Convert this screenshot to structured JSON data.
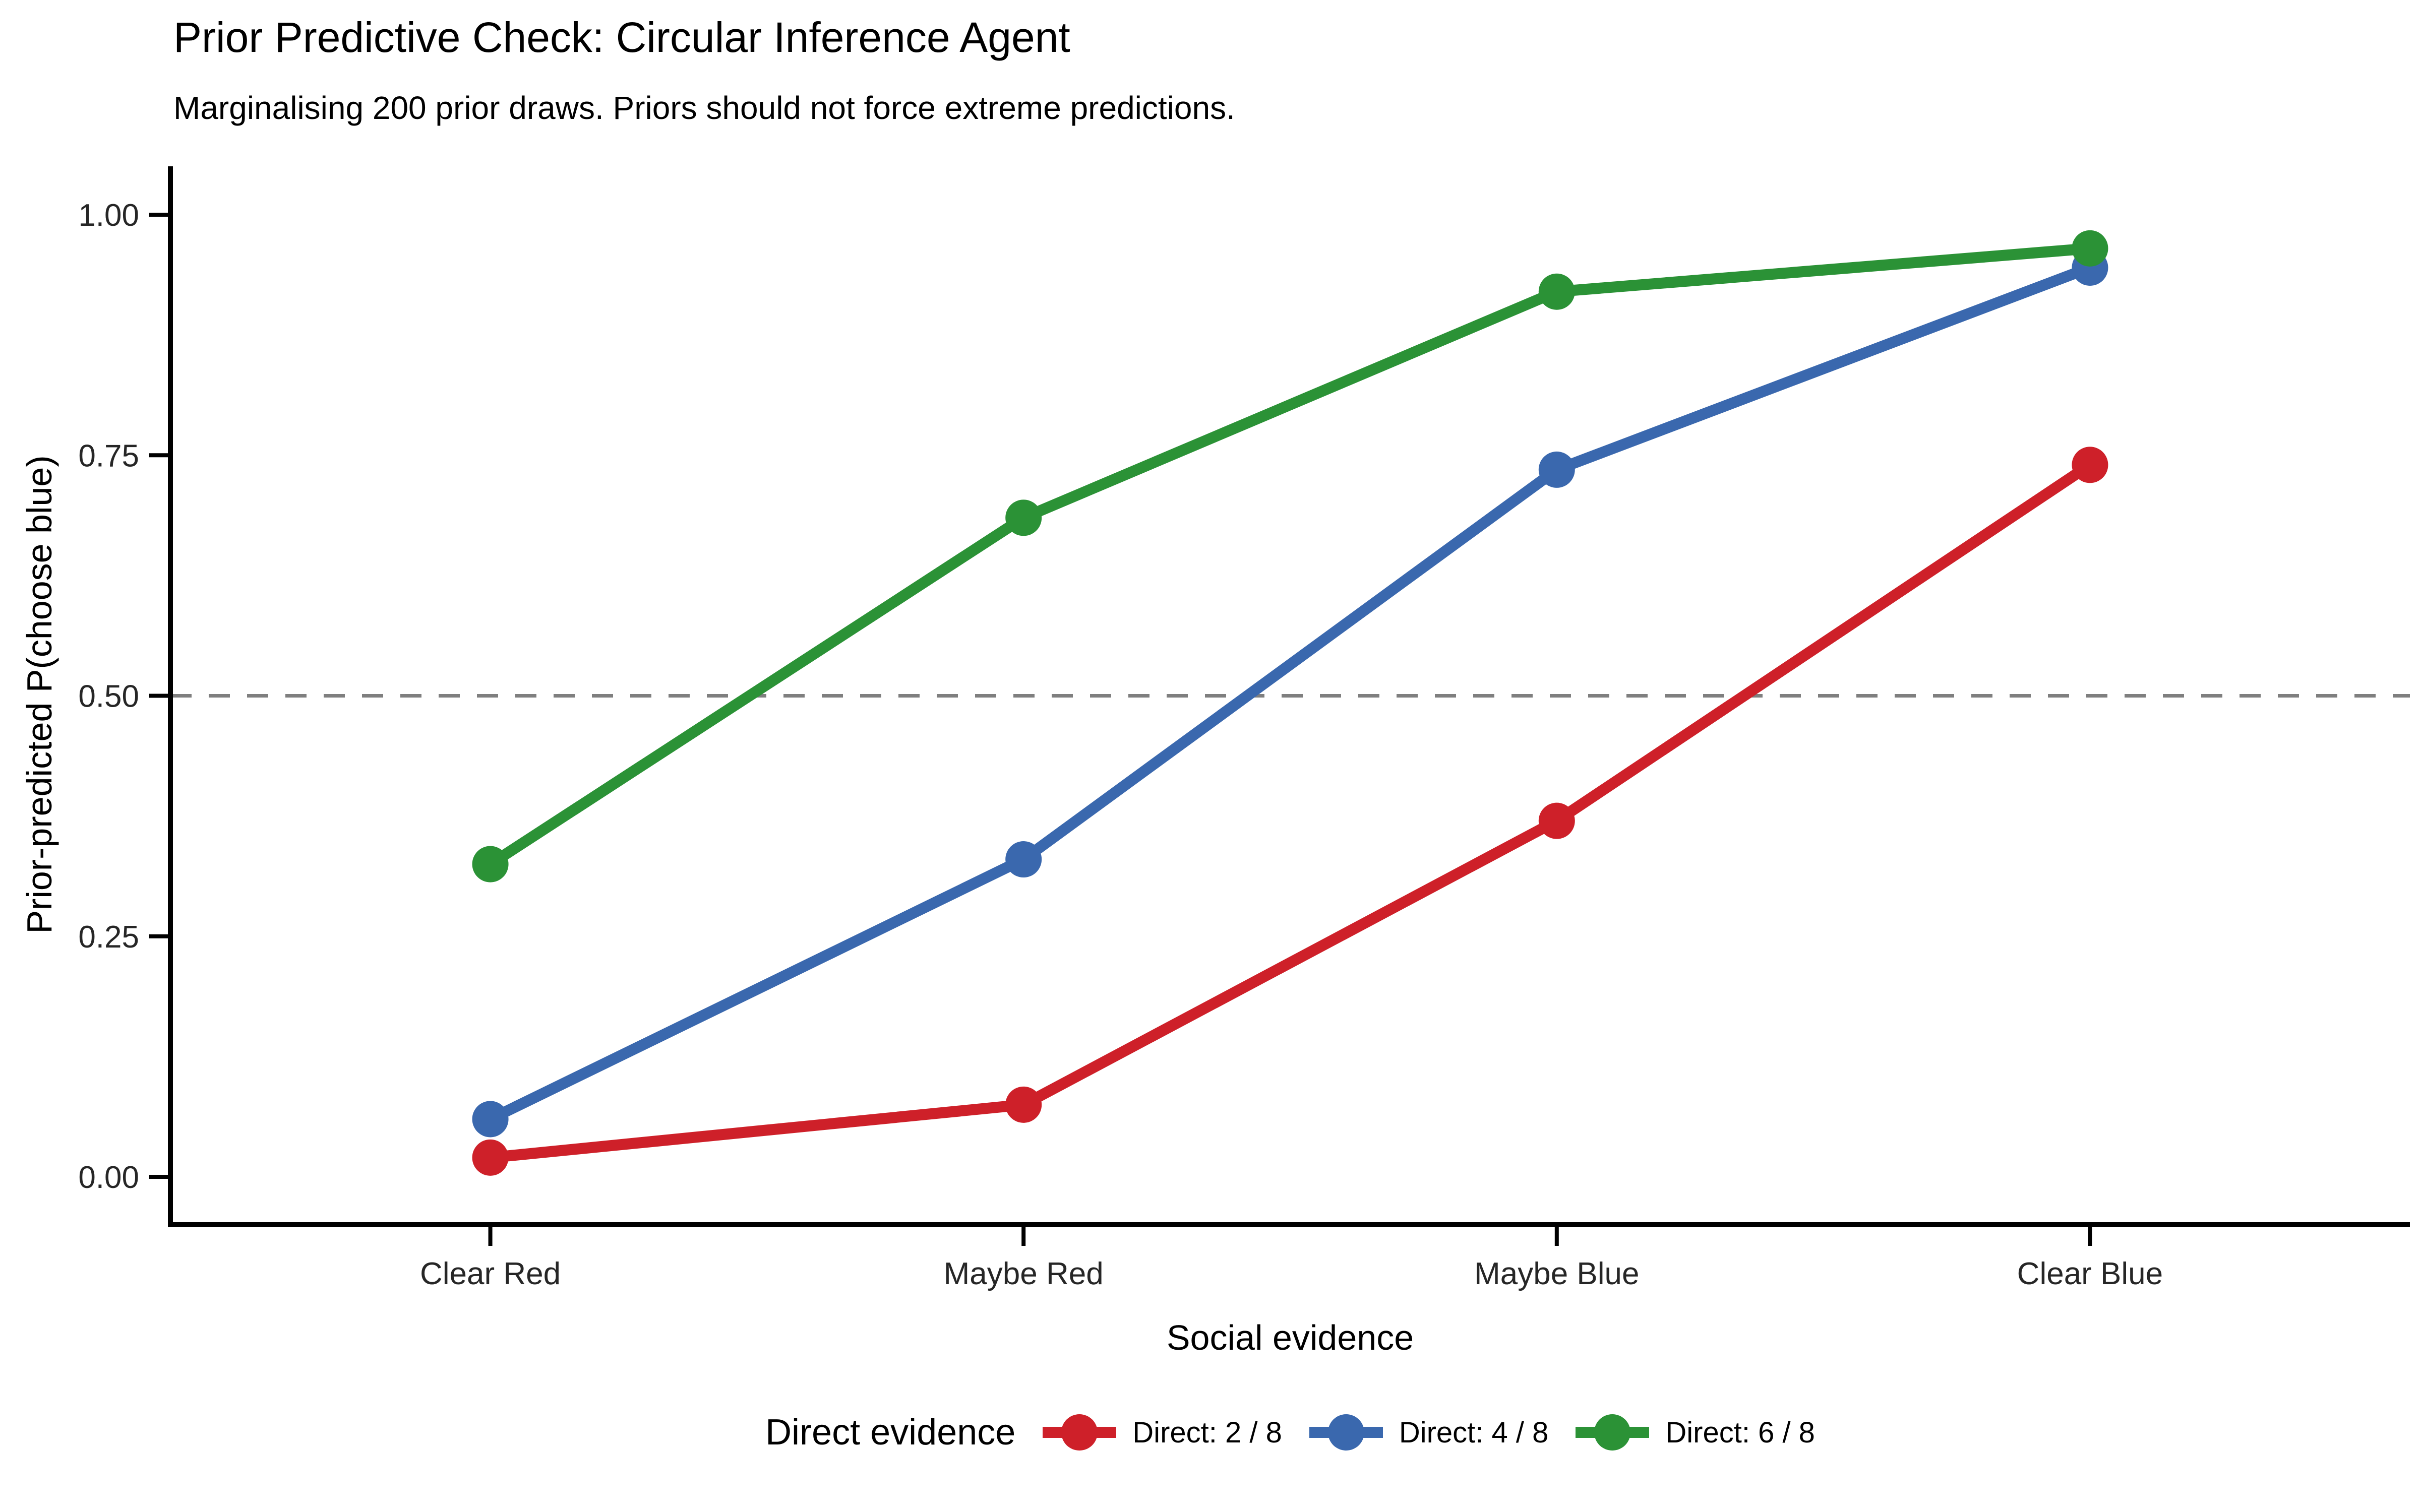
{
  "title": "Prior Predictive Check: Circular Inference Agent",
  "subtitle": "Marginalising 200 prior draws. Priors should not force extreme predictions.",
  "chart_data": {
    "type": "line",
    "title": "Prior Predictive Check: Circular Inference Agent",
    "subtitle": "Marginalising 200 prior draws. Priors should not force extreme predictions.",
    "categories": [
      "Clear Red",
      "Maybe Red",
      "Maybe Blue",
      "Clear Blue"
    ],
    "series": [
      {
        "name": "Direct: 2 / 8",
        "color": "#CE2029",
        "values": [
          0.02,
          0.075,
          0.37,
          0.74
        ]
      },
      {
        "name": "Direct: 4 / 8",
        "color": "#3A68AE",
        "values": [
          0.06,
          0.33,
          0.735,
          0.945
        ]
      },
      {
        "name": "Direct: 6 / 8",
        "color": "#2B9236",
        "values": [
          0.325,
          0.685,
          0.92,
          0.965
        ]
      }
    ],
    "xlabel": "Social evidence",
    "ylabel": "Prior-predicted P(choose blue)",
    "ylim": [
      0,
      1
    ],
    "yticks": [
      {
        "label": "0.00",
        "value": 0
      },
      {
        "label": "0.25",
        "value": 0.25
      },
      {
        "label": "0.50",
        "value": 0.5
      },
      {
        "label": "0.75",
        "value": 0.75
      },
      {
        "label": "1.00",
        "value": 1
      }
    ],
    "reference_line": {
      "y": 0.5,
      "style": "dashed",
      "color": "#7F7F7F"
    },
    "legend_title": "Direct evidence",
    "legend_position": "bottom",
    "grid": false,
    "marker": "circle",
    "axis_color": "#000000",
    "tick_label_color": "#262626"
  }
}
